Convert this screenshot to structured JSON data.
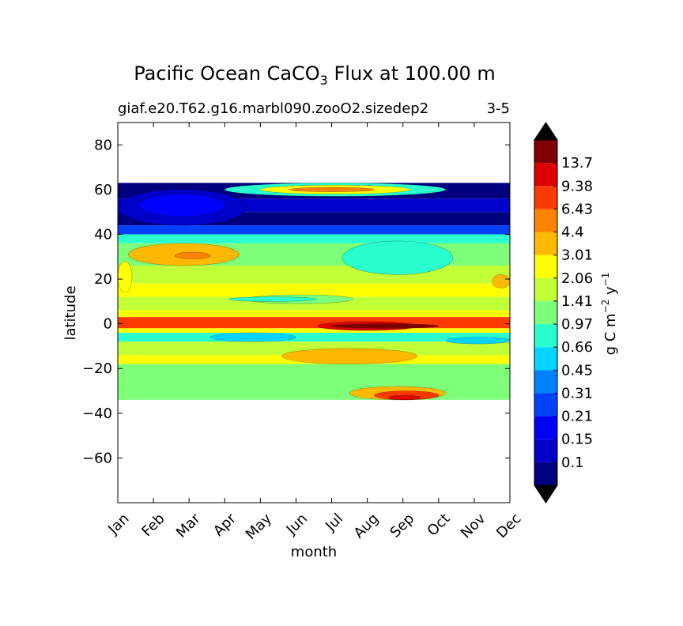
{
  "chart_data": {
    "type": "heatmap",
    "title": {
      "prefix": "Pacific Ocean CaCO",
      "subscript": "3",
      "suffix": " Flux at 100.00 m"
    },
    "subtitle_left": "giaf.e20.T62.g16.marbl090.zooO2.sizedep2",
    "subtitle_right": "3-5",
    "xlabel": "month",
    "ylabel": "latitude",
    "x_ticks": [
      "Jan",
      "Feb",
      "Mar",
      "Apr",
      "May",
      "Jun",
      "Jul",
      "Aug",
      "Sep",
      "Oct",
      "Nov",
      "Dec"
    ],
    "y_ticks": [
      80,
      60,
      40,
      20,
      0,
      -20,
      -40,
      -60
    ],
    "y_tick_labels": [
      "80",
      "60",
      "40",
      "20",
      "0",
      "−20",
      "−40",
      "−60"
    ],
    "ylim": [
      -80,
      90
    ],
    "data_lat_range": [
      -34,
      63
    ],
    "colorbar": {
      "label": {
        "base": "g C m",
        "exp1": "−2",
        "mid": " y",
        "exp2": "−1"
      },
      "levels": [
        "0.1",
        "0.15",
        "0.21",
        "0.31",
        "0.45",
        "0.66",
        "0.97",
        "1.41",
        "2.06",
        "3.01",
        "4.4",
        "6.43",
        "9.38",
        "13.7"
      ],
      "colors": [
        "#00007f",
        "#0000c8",
        "#0000ff",
        "#0040ff",
        "#0080ff",
        "#00d4ff",
        "#29ffce",
        "#7dff7a",
        "#c1ff36",
        "#ffff00",
        "#ffb900",
        "#ff8200",
        "#ff3a00",
        "#dd0000",
        "#7f0000"
      ],
      "extend": "both",
      "over_color": "#000000",
      "under_color": "#000000"
    },
    "latitude_bands": [
      {
        "lat": [
          56,
          63
        ],
        "band": 0
      },
      {
        "lat": [
          50,
          56
        ],
        "band": 1
      },
      {
        "lat": [
          44,
          50
        ],
        "band": 0
      },
      {
        "lat": [
          40,
          44
        ],
        "band": 3
      },
      {
        "lat": [
          36,
          40
        ],
        "band": 6
      },
      {
        "lat": [
          26,
          36
        ],
        "band": 7
      },
      {
        "lat": [
          18,
          26
        ],
        "band": 8
      },
      {
        "lat": [
          12,
          18
        ],
        "band": 9
      },
      {
        "lat": [
          6,
          12
        ],
        "band": 8
      },
      {
        "lat": [
          3,
          6
        ],
        "band": 9
      },
      {
        "lat": [
          -2,
          3
        ],
        "band": 12
      },
      {
        "lat": [
          -4,
          -2
        ],
        "band": 9
      },
      {
        "lat": [
          -8,
          -4
        ],
        "band": 6
      },
      {
        "lat": [
          -14,
          -8
        ],
        "band": 8
      },
      {
        "lat": [
          -18,
          -14
        ],
        "band": 9
      },
      {
        "lat": [
          -26,
          -18
        ],
        "band": 7
      },
      {
        "lat": [
          -34,
          -26
        ],
        "band": 7
      }
    ],
    "features": [
      {
        "month": [
          0.3,
          3.4
        ],
        "lat": [
          26,
          36
        ],
        "band": 10
      },
      {
        "month": [
          1.6,
          2.6
        ],
        "lat": [
          29,
          32
        ],
        "band": 11
      },
      {
        "month": [
          6.3,
          9.4
        ],
        "lat": [
          22,
          37
        ],
        "band": 6
      },
      {
        "month": [
          3.6,
          6.6
        ],
        "lat": [
          9,
          13
        ],
        "band": 7
      },
      {
        "month": [
          3.1,
          5.6
        ],
        "lat": [
          10,
          12
        ],
        "band": 6
      },
      {
        "month": [
          4.6,
          8.4
        ],
        "lat": [
          -18,
          -11
        ],
        "band": 10
      },
      {
        "month": [
          5.6,
          8.4
        ],
        "lat": [
          -3,
          1
        ],
        "band": 13
      },
      {
        "month": [
          6.0,
          9.0
        ],
        "lat": [
          -2,
          0
        ],
        "band": 14
      },
      {
        "month": [
          6.5,
          9.2
        ],
        "lat": [
          -34,
          -28
        ],
        "band": 10
      },
      {
        "month": [
          7.2,
          9.0
        ],
        "lat": [
          -34,
          -30
        ],
        "band": 12
      },
      {
        "month": [
          7.6,
          8.5
        ],
        "lat": [
          -34,
          -32
        ],
        "band": 13
      },
      {
        "month": [
          3.0,
          9.2
        ],
        "lat": [
          57,
          63
        ],
        "band": 6
      },
      {
        "month": [
          4.0,
          8.2
        ],
        "lat": [
          58,
          62
        ],
        "band": 9
      },
      {
        "month": [
          4.8,
          7.2
        ],
        "lat": [
          59,
          61
        ],
        "band": 11
      },
      {
        "month": [
          0.0,
          3.6
        ],
        "lat": [
          44,
          60
        ],
        "band": 1
      },
      {
        "month": [
          0.6,
          3.0
        ],
        "lat": [
          48,
          58
        ],
        "band": 2
      },
      {
        "month": [
          2.6,
          5.0
        ],
        "lat": [
          -8,
          -4
        ],
        "band": 5
      },
      {
        "month": [
          9.2,
          11.0
        ],
        "lat": [
          -9,
          -6
        ],
        "band": 5
      },
      {
        "month": [
          10.5,
          11.0
        ],
        "lat": [
          16,
          22
        ],
        "band": 10
      },
      {
        "month": [
          0.0,
          0.4
        ],
        "lat": [
          14,
          28
        ],
        "band": 9
      }
    ]
  }
}
